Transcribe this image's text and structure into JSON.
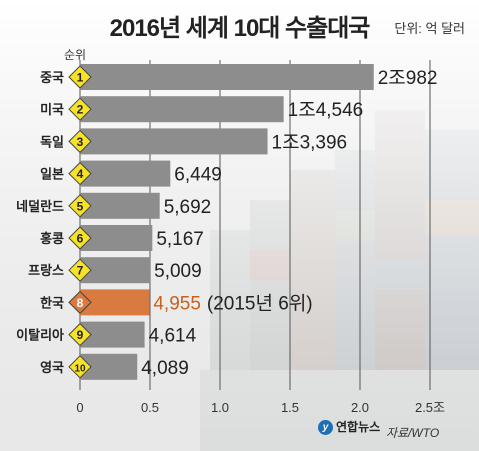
{
  "title": "2016년 세계 10대 수출대국",
  "unit_label": "단위: 억 달러",
  "rank_header": "순위",
  "source": "자료/WTO",
  "logo_text": "연합뉴스",
  "colors": {
    "bar": "#8d8d8d",
    "highlight_bar": "#d97a40",
    "highlight_text": "#c8611f",
    "badge_fill": "#f6e226",
    "highlight_badge_fill": "#d97a40",
    "text": "#222222"
  },
  "chart_data": {
    "type": "bar",
    "orientation": "horizontal",
    "title": "2016년 세계 10대 수출대국",
    "unit": "단위: 억 달러",
    "categories": [
      "중국",
      "미국",
      "독일",
      "일본",
      "네덜란드",
      "홍콩",
      "프랑스",
      "한국",
      "이탈리아",
      "영국"
    ],
    "ranks": [
      "1",
      "2",
      "3",
      "4",
      "5",
      "6",
      "7",
      "8",
      "9",
      "10"
    ],
    "values": [
      20982,
      14546,
      13396,
      6449,
      5692,
      5167,
      5009,
      4955,
      4614,
      4089
    ],
    "value_labels": [
      "2조982",
      "1조4,546",
      "1조3,396",
      "6,449",
      "5,692",
      "5,167",
      "5,009",
      "4,955",
      "4,614",
      "4,089"
    ],
    "highlight_index": 7,
    "highlight_note": "(2015년 6위)",
    "x_ticks": [
      0,
      5000,
      10000,
      15000,
      20000,
      25000
    ],
    "x_tick_labels": [
      "0",
      "0.5",
      "1.0",
      "1.5",
      "2.0",
      "2.5조"
    ],
    "xlim": [
      0,
      25000
    ],
    "grid": true,
    "legend": "none"
  }
}
